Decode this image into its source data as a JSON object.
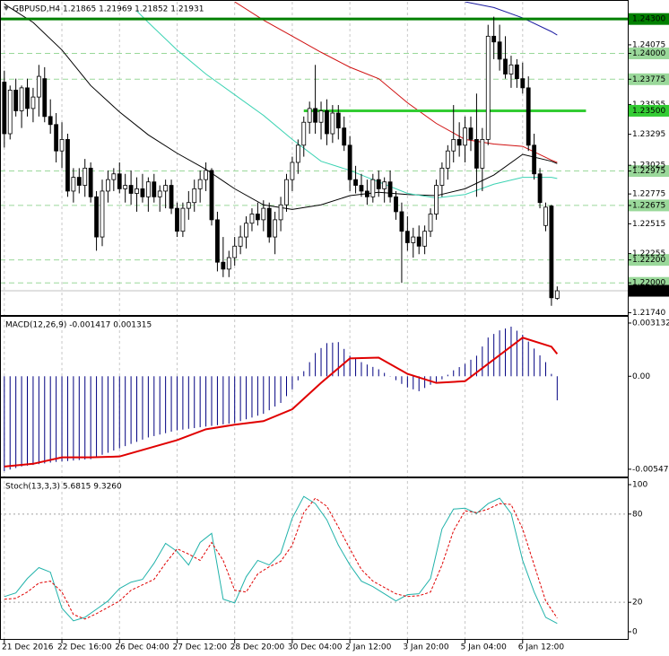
{
  "chart_data": [
    {
      "type": "candlestick",
      "title": "GBPUSD,H4  1.21865 1.21969 1.21852 1.21931",
      "open": [
        1.2375,
        1.233,
        1.2368,
        1.235,
        1.237,
        1.2352,
        1.2362,
        1.2378,
        1.2345,
        1.2338,
        1.2315,
        1.2325,
        1.228,
        1.2292,
        1.2285,
        1.23,
        1.2275,
        1.224,
        1.228,
        1.229,
        1.2295,
        1.2282,
        1.2285,
        1.2278,
        1.2282,
        1.2275,
        1.2288,
        1.2275,
        1.228,
        1.2285,
        1.2265,
        1.2245,
        1.2265,
        1.227,
        1.2282,
        1.229,
        1.2298,
        1.2255,
        1.2218,
        1.2212,
        1.2222,
        1.2232,
        1.224,
        1.2252,
        1.226,
        1.2255,
        1.2265,
        1.224,
        1.2255,
        1.2268,
        1.229,
        1.2305,
        1.232,
        1.234,
        1.2352,
        1.234,
        1.235,
        1.233,
        1.2348,
        1.2335,
        1.232,
        1.229,
        1.2285,
        1.228,
        1.2275,
        1.229,
        1.2282,
        1.2288,
        1.2275,
        1.2262,
        1.2245,
        1.2235,
        1.224,
        1.2232,
        1.2245,
        1.226,
        1.2285,
        1.23,
        1.2315,
        1.2325,
        1.232,
        1.2335,
        1.2325,
        1.23,
        1.2325,
        1.2415,
        1.241,
        1.2395,
        1.2382,
        1.239,
        1.2378,
        1.237,
        1.232,
        1.2295,
        1.225,
        1.2267,
        1.21865
      ],
      "high": [
        1.2385,
        1.2372,
        1.2378,
        1.2372,
        1.2378,
        1.237,
        1.239,
        1.2388,
        1.236,
        1.2348,
        1.234,
        1.233,
        1.23,
        1.23,
        1.2308,
        1.2305,
        1.228,
        1.229,
        1.2298,
        1.23,
        1.2305,
        1.2295,
        1.2298,
        1.2292,
        1.2295,
        1.2292,
        1.2295,
        1.2285,
        1.229,
        1.229,
        1.227,
        1.227,
        1.228,
        1.229,
        1.2298,
        1.2305,
        1.23,
        1.2262,
        1.224,
        1.2228,
        1.224,
        1.225,
        1.2258,
        1.2265,
        1.227,
        1.2272,
        1.227,
        1.2262,
        1.2275,
        1.2295,
        1.231,
        1.2325,
        1.2345,
        1.2358,
        1.239,
        1.2358,
        1.236,
        1.2355,
        1.2355,
        1.2345,
        1.2328,
        1.2302,
        1.2295,
        1.229,
        1.2295,
        1.2298,
        1.2292,
        1.2298,
        1.228,
        1.227,
        1.2258,
        1.2248,
        1.225,
        1.225,
        1.2265,
        1.229,
        1.2305,
        1.232,
        1.2355,
        1.234,
        1.2345,
        1.2345,
        1.2365,
        1.2335,
        1.2425,
        1.2432,
        1.2425,
        1.2415,
        1.2398,
        1.2395,
        1.2392,
        1.238,
        1.233,
        1.23,
        1.227,
        1.2268,
        1.21969
      ],
      "low": [
        1.2318,
        1.2325,
        1.2345,
        1.2335,
        1.2345,
        1.234,
        1.2345,
        1.234,
        1.233,
        1.2305,
        1.23,
        1.2275,
        1.227,
        1.2278,
        1.2275,
        1.227,
        1.2228,
        1.2232,
        1.227,
        1.228,
        1.2278,
        1.227,
        1.2268,
        1.2262,
        1.227,
        1.2262,
        1.227,
        1.2262,
        1.2265,
        1.226,
        1.224,
        1.224,
        1.2255,
        1.2262,
        1.227,
        1.228,
        1.225,
        1.221,
        1.2205,
        1.2205,
        1.2215,
        1.2225,
        1.223,
        1.2245,
        1.225,
        1.2245,
        1.2235,
        1.2225,
        1.2245,
        1.2262,
        1.228,
        1.2295,
        1.231,
        1.233,
        1.233,
        1.2325,
        1.232,
        1.2322,
        1.2325,
        1.2315,
        1.228,
        1.2278,
        1.2275,
        1.2268,
        1.227,
        1.2275,
        1.227,
        1.227,
        1.2255,
        1.22,
        1.2228,
        1.2222,
        1.2225,
        1.2225,
        1.224,
        1.2255,
        1.2275,
        1.229,
        1.2305,
        1.231,
        1.2305,
        1.2315,
        1.2275,
        1.228,
        1.232,
        1.2395,
        1.2385,
        1.2378,
        1.237,
        1.237,
        1.2365,
        1.2315,
        1.229,
        1.2265,
        1.2245,
        1.218,
        1.21852
      ],
      "close": [
        1.233,
        1.2368,
        1.235,
        1.237,
        1.2352,
        1.2362,
        1.238,
        1.2345,
        1.2338,
        1.2315,
        1.2325,
        1.228,
        1.2292,
        1.2285,
        1.23,
        1.2275,
        1.224,
        1.228,
        1.229,
        1.2295,
        1.2282,
        1.2285,
        1.2278,
        1.2282,
        1.2275,
        1.2288,
        1.2275,
        1.228,
        1.2285,
        1.2265,
        1.2245,
        1.2265,
        1.227,
        1.2282,
        1.229,
        1.2298,
        1.2255,
        1.2218,
        1.2212,
        1.2222,
        1.2232,
        1.224,
        1.2252,
        1.226,
        1.2255,
        1.2265,
        1.224,
        1.2255,
        1.2268,
        1.229,
        1.2305,
        1.232,
        1.234,
        1.2352,
        1.234,
        1.235,
        1.233,
        1.2348,
        1.2335,
        1.232,
        1.229,
        1.2285,
        1.228,
        1.2275,
        1.229,
        1.2282,
        1.2288,
        1.2275,
        1.2262,
        1.2245,
        1.2235,
        1.224,
        1.2232,
        1.2245,
        1.226,
        1.2285,
        1.23,
        1.2315,
        1.2325,
        1.232,
        1.2335,
        1.2325,
        1.23,
        1.2325,
        1.2415,
        1.241,
        1.2395,
        1.2382,
        1.239,
        1.2378,
        1.237,
        1.232,
        1.2295,
        1.227,
        1.2266,
        1.2187,
        1.21931
      ],
      "bull_color": "#ffffff",
      "bear_color": "#000000",
      "xlim": [
        -0.75,
        108.25
      ],
      "ylim": [
        1.2172,
        1.2445
      ],
      "yticks": [
        1.24075,
        1.23555,
        1.23295,
        1.23025,
        1.22775,
        1.22515,
        1.22255,
        {
          "value": 1.2174,
          "label": "1.21740"
        }
      ],
      "dashed_levels": [
        {
          "value": 1.24,
          "label": "1.24000"
        },
        1.23775,
        1.22975,
        1.22675,
        {
          "value": 1.222,
          "label": "1.22200"
        },
        {
          "value": 1.22,
          "label": "1.22000"
        }
      ],
      "dashed_level_color": "#9ad89a",
      "levels": [
        {
          "value": 1.243,
          "label": "1.24300",
          "color": "#008000"
        },
        {
          "value": 1.235,
          "label": "1.23500",
          "color": "#33cc33",
          "from": 52,
          "to": 101
        }
      ],
      "moving_averages": [
        {
          "color": "#000000",
          "x": [
            0,
            5,
            10,
            15,
            20,
            25,
            30,
            35,
            40,
            45,
            50,
            55,
            60,
            65,
            70,
            75,
            80,
            85,
            90,
            95,
            96
          ],
          "values": [
            1.2443,
            1.2427,
            1.2403,
            1.2372,
            1.2349,
            1.2329,
            1.2313,
            1.2299,
            1.2282,
            1.2268,
            1.2264,
            1.2268,
            1.2276,
            1.2279,
            1.2277,
            1.2276,
            1.2282,
            1.2294,
            1.2312,
            1.2306,
            1.2304
          ]
        },
        {
          "color": "#3cd3b3",
          "x": [
            23,
            25,
            30,
            35,
            40,
            45,
            50,
            55,
            60,
            65,
            70,
            75,
            80,
            85,
            90,
            95,
            96
          ],
          "values": [
            1.2437,
            1.2427,
            1.2403,
            1.2382,
            1.2364,
            1.2346,
            1.2325,
            1.2306,
            1.2298,
            1.2288,
            1.2278,
            1.2274,
            1.2277,
            1.2286,
            1.2292,
            1.2292,
            1.2291
          ]
        },
        {
          "color": "#d01010",
          "x": [
            40,
            45,
            50,
            55,
            60,
            65,
            70,
            75,
            80,
            85,
            90,
            95,
            96
          ],
          "values": [
            1.2445,
            1.2429,
            1.2415,
            1.2401,
            1.2388,
            1.2378,
            1.2357,
            1.2339,
            1.2325,
            1.2321,
            1.2319,
            1.2307,
            1.2305
          ]
        },
        {
          "color": "#1a1aa0",
          "x": [
            80,
            85,
            90,
            95,
            96
          ],
          "values": [
            1.2445,
            1.244,
            1.2431,
            1.2419,
            1.2416
          ]
        }
      ]
    },
    {
      "type": "macd",
      "title": "MACD(12,26,9) -0.001417 0.001315",
      "histogram": {
        "color": "#000080",
        "values": [
          -0.00558,
          -0.00549,
          -0.0054,
          -0.00531,
          -0.00526,
          -0.00522,
          -0.00517,
          -0.00513,
          -0.00508,
          -0.00504,
          -0.00501,
          -0.00499,
          -0.00496,
          -0.00493,
          -0.0049,
          -0.00488,
          -0.00475,
          -0.00462,
          -0.0045,
          -0.00437,
          -0.00424,
          -0.00411,
          -0.00398,
          -0.00386,
          -0.00373,
          -0.0036,
          -0.00352,
          -0.00343,
          -0.00335,
          -0.00326,
          -0.00318,
          -0.00314,
          -0.00309,
          -0.00305,
          -0.003,
          -0.00296,
          -0.00292,
          -0.00288,
          -0.00283,
          -0.00279,
          -0.00275,
          -0.00264,
          -0.00253,
          -0.00243,
          -0.00232,
          -0.00221,
          -0.002,
          -0.00178,
          -0.00157,
          -0.00117,
          -0.00077,
          -0.00024,
          0.0003,
          0.00083,
          0.00137,
          0.00166,
          0.00195,
          0.00198,
          0.00201,
          0.00161,
          0.00121,
          0.00102,
          0.00083,
          0.00069,
          0.00055,
          0.00041,
          0.0002,
          -2e-05,
          -0.00023,
          -0.00045,
          -0.00066,
          -0.00077,
          -0.00088,
          -0.00069,
          -0.0005,
          -0.00034,
          -0.00018,
          9e-05,
          0.00035,
          0.00054,
          0.00073,
          0.00097,
          0.00121,
          0.00175,
          0.00228,
          0.00249,
          0.0027,
          0.00281,
          0.00292,
          0.00268,
          0.00244,
          0.00204,
          0.00163,
          0.00123,
          0.00083,
          0.00014,
          -0.001417
        ]
      },
      "signal": {
        "color": "#e00000",
        "x": [
          0,
          5,
          10,
          15,
          20,
          25,
          30,
          35,
          40,
          45,
          50,
          55,
          60,
          65,
          70,
          75,
          80,
          85,
          90,
          95,
          96
        ],
        "values": [
          -0.00531,
          -0.00515,
          -0.00477,
          -0.00477,
          -0.00472,
          -0.00424,
          -0.00376,
          -0.00312,
          -0.00285,
          -0.00264,
          -0.00194,
          -0.00039,
          0.00105,
          0.0011,
          0.00014,
          -0.00039,
          -0.00029,
          0.00099,
          0.00227,
          0.00174,
          0.001315
        ]
      },
      "ylim": [
        -0.0059,
        0.0035
      ],
      "yticks": [
        0.003132,
        {
          "value": 0,
          "label": "0.00"
        },
        -0.005471
      ]
    },
    {
      "type": "stochastic",
      "title": "Stoch(13,3,3) 5.6815 9.3260",
      "categories": [
        "21 Dec 2016",
        null,
        null,
        null,
        null,
        null,
        null,
        null,
        null,
        null,
        "22 Dec 16:00",
        null,
        null,
        null,
        null,
        null,
        null,
        null,
        null,
        null,
        "26 Dec 04:00",
        null,
        null,
        null,
        null,
        null,
        null,
        null,
        null,
        null,
        "27 Dec 12:00",
        null,
        null,
        null,
        null,
        null,
        null,
        null,
        null,
        null,
        "28 Dec 20:00",
        null,
        null,
        null,
        null,
        null,
        null,
        null,
        null,
        null,
        "30 Dec 04:00",
        null,
        null,
        null,
        null,
        null,
        null,
        null,
        null,
        null,
        "2 Jan 12:00",
        null,
        null,
        null,
        null,
        null,
        null,
        null,
        null,
        null,
        "3 Jan 20:00",
        null,
        null,
        null,
        null,
        null,
        null,
        null,
        null,
        null,
        "5 Jan 04:00",
        null,
        null,
        null,
        null,
        null,
        null,
        null,
        null,
        null,
        "6 Jan 12:00",
        null,
        null,
        null,
        null,
        null,
        null
      ],
      "x": [
        0,
        2,
        4,
        6,
        8,
        10,
        12,
        14,
        16,
        18,
        20,
        22,
        24,
        26,
        28,
        30,
        32,
        34,
        36,
        38,
        40,
        42,
        44,
        46,
        48,
        50,
        52,
        54,
        56,
        58,
        60,
        62,
        64,
        66,
        68,
        70,
        72,
        74,
        76,
        78,
        80,
        82,
        84,
        86,
        88,
        90,
        92,
        94,
        96
      ],
      "series": [
        {
          "color": "#20b2aa",
          "values": [
            23.9,
            26.4,
            36.2,
            43.6,
            40.5,
            16.0,
            7.4,
            9.8,
            15.3,
            20.9,
            29.4,
            33.7,
            35.6,
            46.6,
            60.1,
            54.6,
            45.4,
            60.7,
            66.9,
            22.1,
            19.6,
            37.4,
            48.5,
            45.4,
            53.4,
            77.3,
            92.0,
            87.1,
            76.1,
            58.9,
            45.4,
            34.4,
            30.7,
            25.8,
            20.9,
            25.2,
            25.8,
            36.2,
            69.9,
            83.4,
            84.0,
            80.4,
            87.1,
            90.8,
            80.4,
            48.5,
            27.0,
            9.8,
            5.6815
          ]
        },
        {
          "color": "#e00000",
          "dashed": true,
          "values": [
            22.1,
            22.7,
            27.0,
            33.1,
            34.4,
            27.0,
            11.7,
            8.6,
            12.3,
            16.6,
            20.9,
            28.2,
            31.9,
            35.6,
            46.6,
            56.4,
            52.8,
            48.5,
            60.7,
            48.5,
            28.2,
            27.0,
            39.3,
            44.2,
            47.9,
            58.9,
            81.0,
            90.8,
            85.3,
            71.2,
            56.4,
            42.3,
            34.4,
            30.1,
            25.8,
            23.9,
            24.5,
            27.0,
            45.4,
            68.7,
            82.2,
            81.0,
            83.4,
            87.1,
            86.5,
            69.9,
            45.4,
            20.9,
            9.326
          ]
        }
      ],
      "ylim": [
        -4.9,
        104.3
      ],
      "yticks": [
        100,
        80,
        20,
        0
      ],
      "levels": [
        80,
        20
      ]
    }
  ]
}
